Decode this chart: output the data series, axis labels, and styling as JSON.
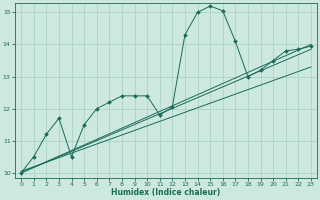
{
  "title": "",
  "xlabel": "Humidex (Indice chaleur)",
  "bg_color": "#cce8df",
  "grid_color": "#a8cfc5",
  "line_color": "#1a6b58",
  "xlim": [
    -0.5,
    23.5
  ],
  "ylim": [
    9.85,
    15.3
  ],
  "yticks": [
    10,
    11,
    12,
    13,
    14,
    15
  ],
  "xticks": [
    0,
    1,
    2,
    3,
    4,
    5,
    6,
    7,
    8,
    9,
    10,
    11,
    12,
    13,
    14,
    15,
    16,
    17,
    18,
    19,
    20,
    21,
    22,
    23
  ],
  "series_main": {
    "x": [
      0,
      1,
      2,
      3,
      4,
      5,
      6,
      7,
      8,
      9,
      10,
      11,
      12,
      13,
      14,
      15,
      16,
      17,
      18,
      19,
      20,
      21,
      22,
      23
    ],
    "y": [
      10.0,
      10.5,
      11.2,
      11.7,
      10.5,
      11.5,
      12.0,
      12.2,
      12.4,
      12.4,
      12.4,
      11.8,
      12.05,
      14.3,
      15.0,
      15.2,
      15.05,
      14.1,
      13.0,
      13.2,
      13.5,
      13.8,
      13.85,
      13.95
    ]
  },
  "series_line1": {
    "x": [
      0,
      23
    ],
    "y": [
      10.0,
      14.0
    ]
  },
  "series_line2": {
    "x": [
      0,
      23
    ],
    "y": [
      10.0,
      13.85
    ]
  },
  "series_line3": {
    "x": [
      0,
      23
    ],
    "y": [
      10.05,
      13.3
    ]
  }
}
